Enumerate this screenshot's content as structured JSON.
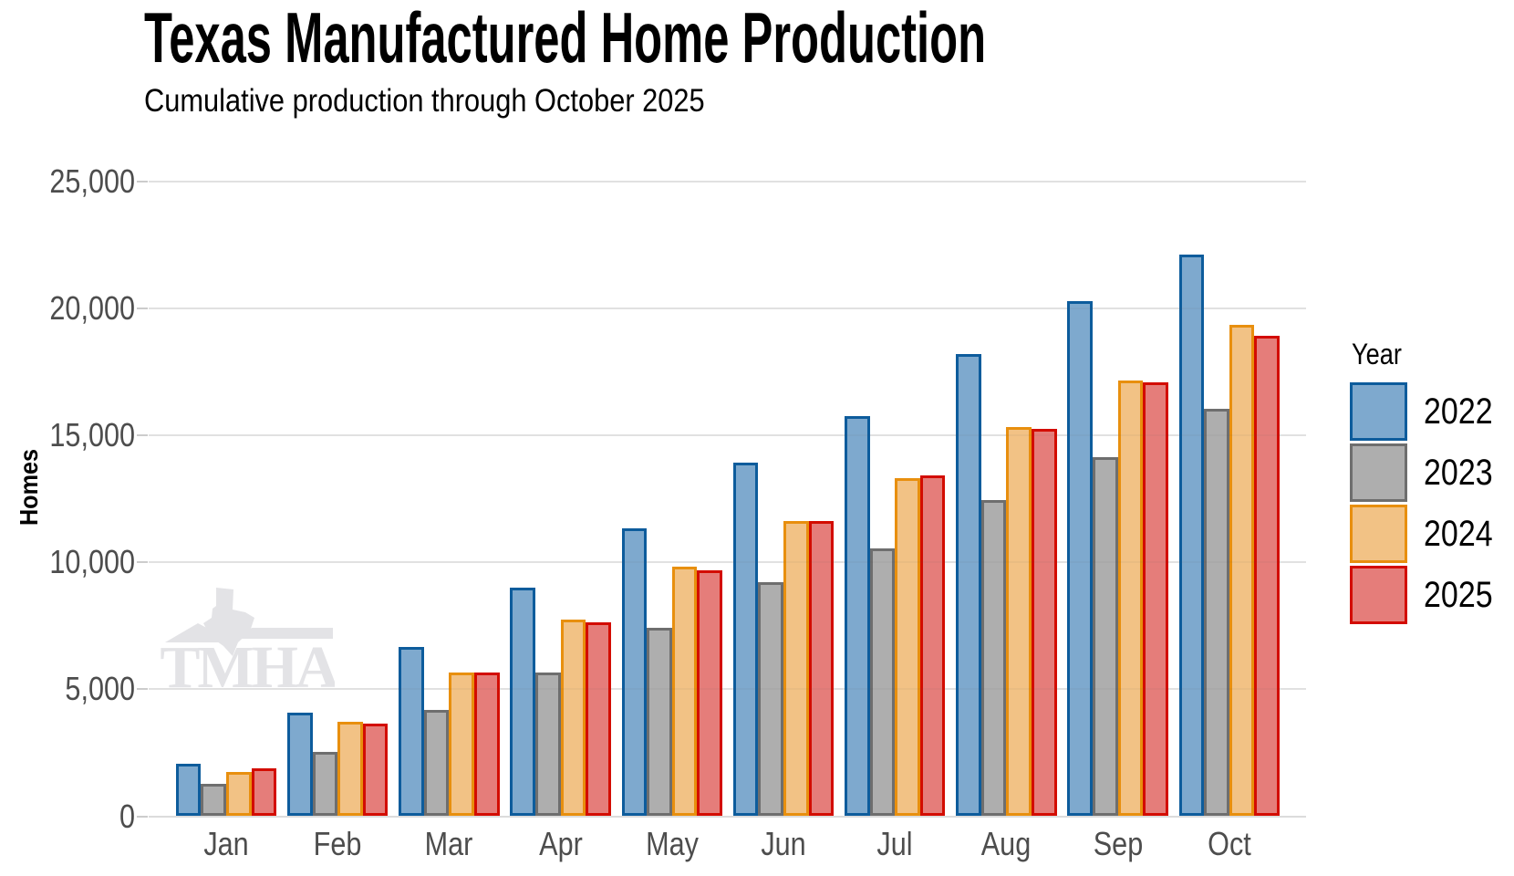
{
  "chart_data": {
    "type": "bar",
    "title": "Texas Manufactured Home Production",
    "subtitle": "Cumulative production through October 2025",
    "xlabel": "",
    "ylabel": "Homes",
    "categories": [
      "Jan",
      "Feb",
      "Mar",
      "Apr",
      "May",
      "Jun",
      "Jul",
      "Aug",
      "Sep",
      "Oct"
    ],
    "series": [
      {
        "name": "2022",
        "fill": "#7EA9CE",
        "stroke": "#0D5C9C",
        "values": [
          2060,
          4090,
          6670,
          9000,
          11340,
          13910,
          15740,
          18190,
          20280,
          22100
        ]
      },
      {
        "name": "2023",
        "fill": "#AEAEAE",
        "stroke": "#6E6E6E",
        "values": [
          1270,
          2550,
          4190,
          5640,
          7410,
          9220,
          10540,
          12440,
          14150,
          16030
        ]
      },
      {
        "name": "2024",
        "fill": "#F2C285",
        "stroke": "#E88F0E",
        "values": [
          1760,
          3720,
          5670,
          7740,
          9830,
          11610,
          13320,
          15310,
          17160,
          19360
        ]
      },
      {
        "name": "2025",
        "fill": "#E57D7A",
        "stroke": "#D30C00",
        "values": [
          1890,
          3660,
          5670,
          7640,
          9670,
          11630,
          13420,
          15240,
          17070,
          18900
        ]
      }
    ],
    "ylim": [
      0,
      25000
    ],
    "yticks": [
      0,
      5000,
      10000,
      15000,
      20000,
      25000
    ],
    "ytick_labels": [
      "0",
      "5,000",
      "10,000",
      "15,000",
      "20,000",
      "25,000"
    ],
    "grid": true,
    "legend": {
      "title": "Year",
      "position": "right"
    }
  },
  "watermark": {
    "text": "TMHA"
  },
  "colors": {
    "grid": "#e9e9e9",
    "axis": "#dcdcdc",
    "tick_text": "#4d4d4d",
    "watermark": "#e3e3e6",
    "background": "#ffffff"
  }
}
